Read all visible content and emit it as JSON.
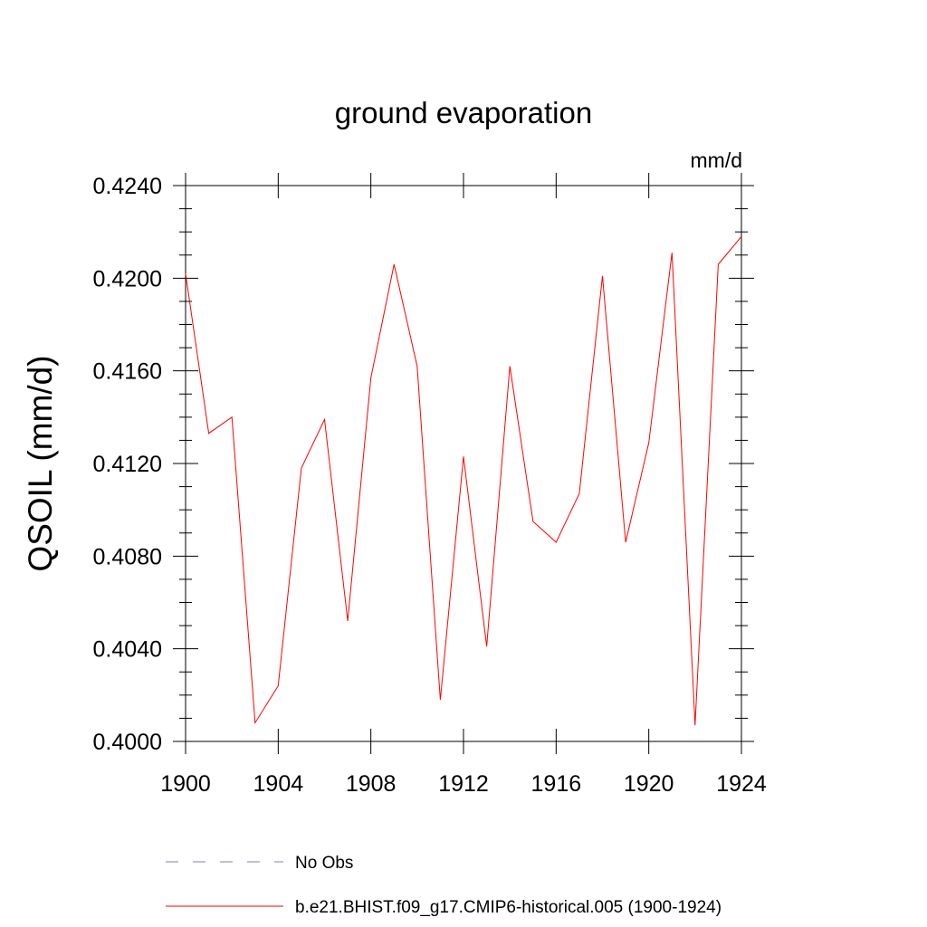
{
  "chart_data": {
    "type": "line",
    "title": "ground evaporation",
    "units_label": "mm/d",
    "ylabel": "QSOIL  (mm/d)",
    "xlabel": "",
    "xlim": [
      1900,
      1924
    ],
    "ylim": [
      0.4,
      0.424
    ],
    "x_ticks": [
      1900,
      1904,
      1908,
      1912,
      1916,
      1920,
      1924
    ],
    "x_tick_labels": [
      "1900",
      "1904",
      "1908",
      "1912",
      "1916",
      "1920",
      "1924"
    ],
    "y_ticks": [
      0.4,
      0.404,
      0.408,
      0.412,
      0.416,
      0.42,
      0.424
    ],
    "y_tick_labels": [
      "0.4000",
      "0.4040",
      "0.4080",
      "0.4120",
      "0.4160",
      "0.4200",
      "0.4240"
    ],
    "grid": false,
    "legend_position": "bottom",
    "series": [
      {
        "name": "b.e21.BHIST.f09_g17.CMIP6-historical.005 (1900-1924)",
        "color": "#ff0000",
        "style": "solid",
        "x": [
          1900,
          1901,
          1902,
          1903,
          1904,
          1905,
          1906,
          1907,
          1908,
          1909,
          1910,
          1911,
          1912,
          1913,
          1914,
          1915,
          1916,
          1917,
          1918,
          1919,
          1920,
          1921,
          1922,
          1923,
          1924
        ],
        "y": [
          0.4202,
          0.4133,
          0.414,
          0.4008,
          0.4024,
          0.4118,
          0.4139,
          0.4052,
          0.4157,
          0.4206,
          0.4162,
          0.4018,
          0.4123,
          0.4041,
          0.4162,
          0.4095,
          0.4086,
          0.4107,
          0.4201,
          0.4086,
          0.4129,
          0.4211,
          0.4007,
          0.4206,
          0.4218
        ]
      }
    ],
    "legend": [
      {
        "label": "No Obs",
        "color": "#7f7fbf",
        "style": "dashed"
      },
      {
        "label": "b.e21.BHIST.f09_g17.CMIP6-historical.005 (1900-1924)",
        "color": "#ff0000",
        "style": "solid"
      }
    ]
  }
}
